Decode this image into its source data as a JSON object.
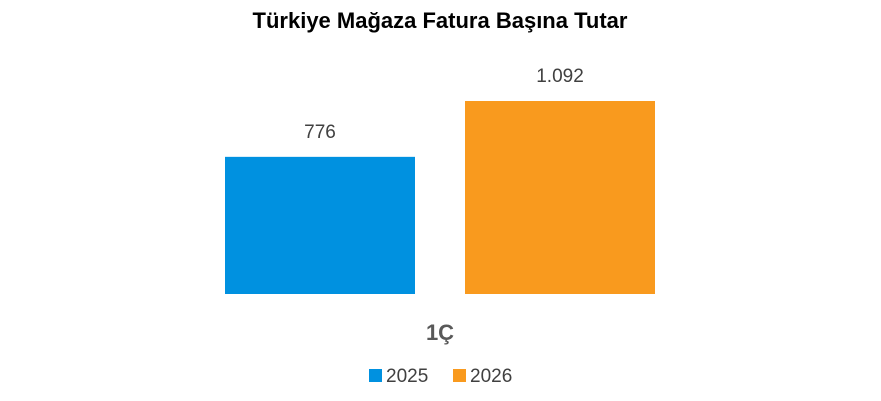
{
  "chart_data": {
    "type": "bar",
    "title": "Türkiye Mağaza Fatura Başına Tutar",
    "categories": [
      "1Ç"
    ],
    "series": [
      {
        "name": "2025",
        "color": "#0091e0",
        "values": [
          776
        ],
        "value_labels": [
          "776"
        ]
      },
      {
        "name": "2026",
        "color": "#f99a1e",
        "values": [
          1092
        ],
        "value_labels": [
          "1.092"
        ]
      }
    ],
    "legend": "bottom"
  }
}
